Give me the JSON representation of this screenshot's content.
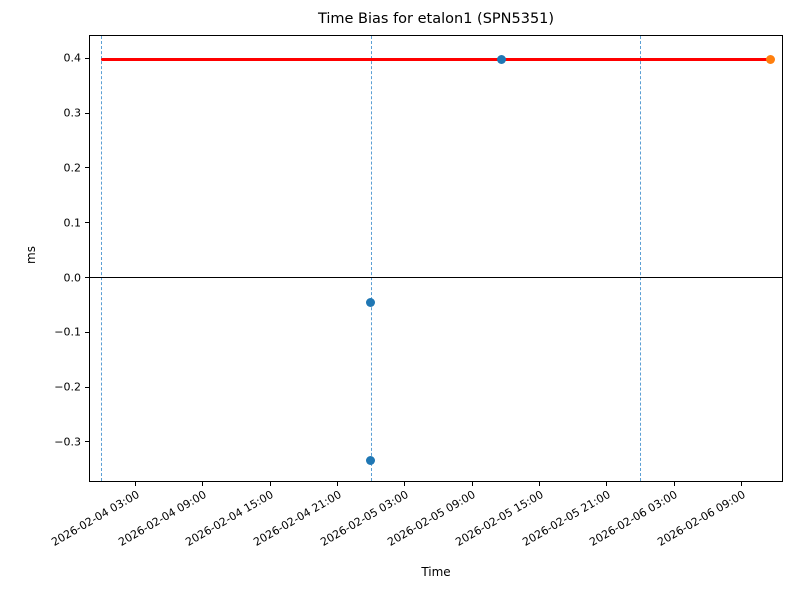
{
  "chart_data": {
    "type": "scatter",
    "title": "Time Bias for etalon1 (SPN5351)",
    "xlabel": "Time",
    "ylabel": "ms",
    "background": "#ffffff",
    "grid": false,
    "legend": false,
    "epoch": "2026-02-04 00:00",
    "xlim_hours_from_epoch": [
      -1.01,
      60.66
    ],
    "ylim": [
      -0.3716,
      0.4408
    ],
    "x_tick_rotation_deg": 30,
    "x_ticks": [
      "2026-02-04 03:00",
      "2026-02-04 09:00",
      "2026-02-04 15:00",
      "2026-02-04 21:00",
      "2026-02-05 03:00",
      "2026-02-05 09:00",
      "2026-02-05 15:00",
      "2026-02-05 21:00",
      "2026-02-06 03:00",
      "2026-02-06 09:00"
    ],
    "y_ticks": [
      {
        "value": 0.4,
        "label": "0.4"
      },
      {
        "value": 0.3,
        "label": "0.3"
      },
      {
        "value": 0.2,
        "label": "0.2"
      },
      {
        "value": 0.1,
        "label": "0.1"
      },
      {
        "value": 0.0,
        "label": "0.0"
      },
      {
        "value": -0.1,
        "label": "−0.1"
      },
      {
        "value": -0.2,
        "label": "−0.2"
      },
      {
        "value": -0.3,
        "label": "−0.3"
      }
    ],
    "series": [
      {
        "name": "time-bias-measurements",
        "color": "#1f77b4",
        "marker": "circle",
        "points": [
          {
            "time": "2026-02-05 00:00",
            "ms": -0.334
          },
          {
            "time": "2026-02-05 00:00",
            "ms": -0.046
          },
          {
            "time": "2026-02-05 11:40",
            "ms": 0.398
          }
        ]
      },
      {
        "name": "latest-measurement",
        "color": "#ff7f0e",
        "marker": "circle",
        "points": [
          {
            "time": "2026-02-06 11:40",
            "ms": 0.398
          }
        ]
      }
    ],
    "reference_line": {
      "ms": 0.398,
      "from": "2026-02-04 00:00",
      "to": "2026-02-06 11:40",
      "color": "#ff0000"
    },
    "zero_line": {
      "ms": 0.0,
      "color": "#000000"
    },
    "day_boundary_lines": {
      "style": "dashed",
      "color": "#5b9fd4",
      "times": [
        "2026-02-04 00:00",
        "2026-02-05 00:00",
        "2026-02-06 00:00"
      ]
    }
  }
}
